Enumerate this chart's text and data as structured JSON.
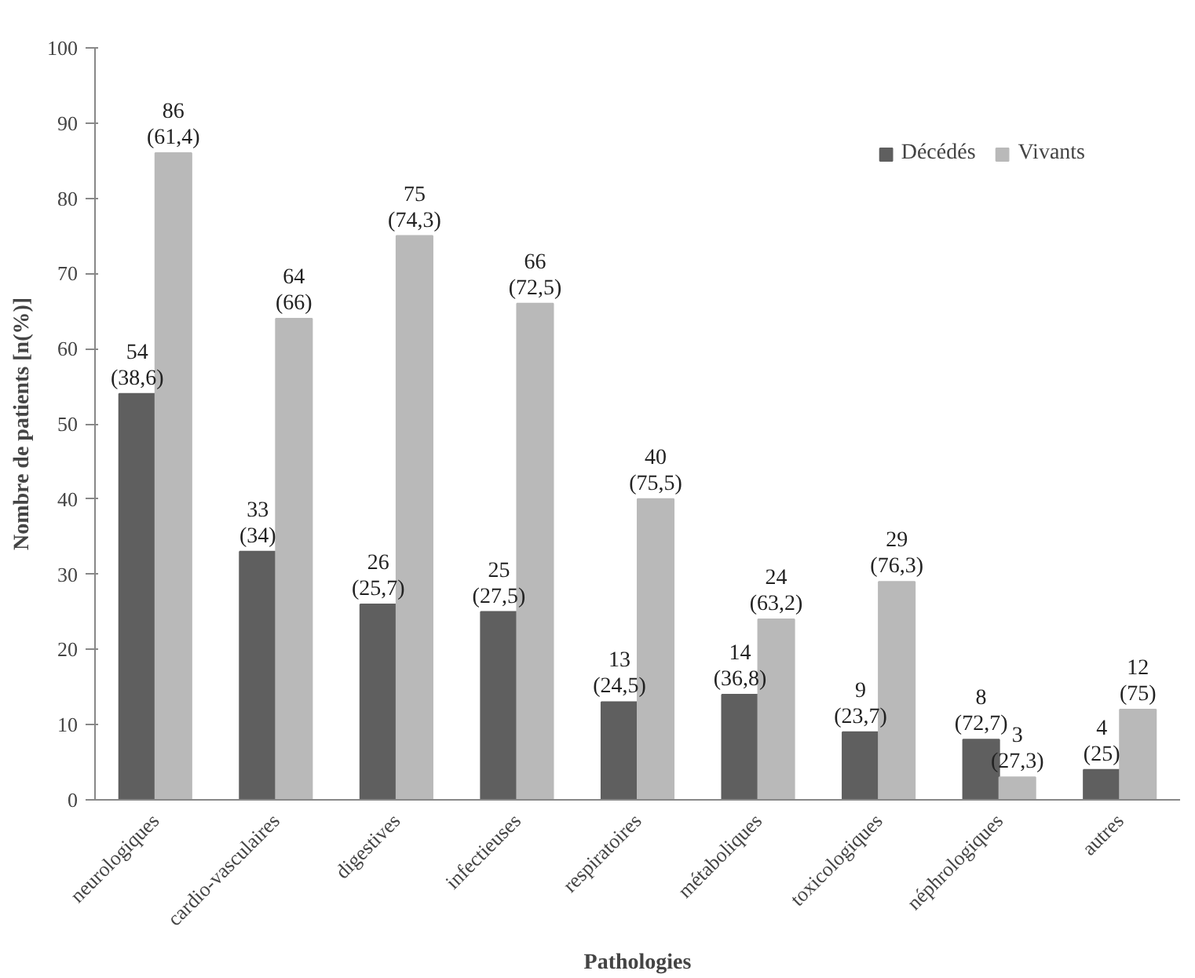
{
  "chart_data": {
    "type": "bar",
    "xlabel": "Pathologies",
    "ylabel": "Nombre de patients [n(%)]",
    "categories": [
      "neurologiques",
      "cardio-vasculaires",
      "digestives",
      "infectieuses",
      "respiratoires",
      "métaboliques",
      "toxicologiques",
      "néphrologiques",
      "autres"
    ],
    "series": [
      {
        "name": "Décédés",
        "color": "#5f5f5f",
        "values": [
          54,
          33,
          26,
          25,
          13,
          14,
          9,
          8,
          4
        ],
        "value_labels": [
          "54\n(38,6)",
          "33\n(34)",
          "26\n(25,7)",
          "25\n(27,5)",
          "13\n(24,5)",
          "14\n(36,8)",
          "9\n(23,7)",
          "8\n(72,7)",
          "4\n(25)"
        ]
      },
      {
        "name": "Vivants",
        "color": "#b9b9b9",
        "values": [
          86,
          64,
          75,
          66,
          40,
          24,
          29,
          3,
          12
        ],
        "value_labels": [
          "86\n(61,4)",
          "64\n(66)",
          "75\n(74,3)",
          "66\n(72,5)",
          "40\n(75,5)",
          "24\n(63,2)",
          "29\n(76,3)",
          "3\n(27,3)",
          "12\n(75)"
        ]
      }
    ],
    "ylim": [
      0,
      100
    ],
    "yticks": [
      0,
      10,
      20,
      30,
      40,
      50,
      60,
      70,
      80,
      90,
      100
    ],
    "grid": false,
    "legend": "top right"
  }
}
